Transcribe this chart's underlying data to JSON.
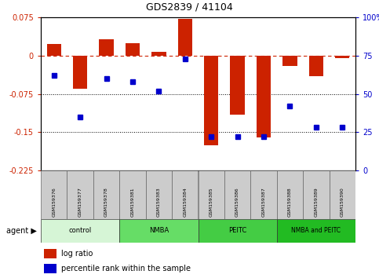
{
  "title": "GDS2839 / 41104",
  "samples": [
    "GSM159376",
    "GSM159377",
    "GSM159378",
    "GSM159381",
    "GSM159383",
    "GSM159384",
    "GSM159385",
    "GSM159386",
    "GSM159387",
    "GSM159388",
    "GSM159389",
    "GSM159390"
  ],
  "log_ratio": [
    0.022,
    -0.065,
    0.032,
    0.025,
    0.008,
    0.072,
    -0.175,
    -0.115,
    -0.16,
    -0.02,
    -0.04,
    -0.005
  ],
  "percentile_rank": [
    62,
    35,
    60,
    58,
    52,
    73,
    22,
    22,
    22,
    42,
    28,
    28
  ],
  "groups": [
    {
      "label": "control",
      "start": 0,
      "end": 3,
      "color": "#d6f5d6"
    },
    {
      "label": "NMBA",
      "start": 3,
      "end": 6,
      "color": "#66dd66"
    },
    {
      "label": "PEITC",
      "start": 6,
      "end": 9,
      "color": "#44cc44"
    },
    {
      "label": "NMBA and PEITC",
      "start": 9,
      "end": 12,
      "color": "#22bb22"
    }
  ],
  "ylim_left": [
    -0.225,
    0.075
  ],
  "ylim_right": [
    0,
    100
  ],
  "yticks_left": [
    0.075,
    0,
    -0.075,
    -0.15,
    -0.225
  ],
  "yticks_right": [
    100,
    75,
    50,
    25,
    0
  ],
  "bar_color": "#cc2200",
  "dot_color": "#0000cc",
  "dotted_lines": [
    -0.075,
    -0.15
  ],
  "bar_width": 0.55,
  "fig_width": 4.83,
  "fig_height": 3.54,
  "dpi": 100
}
